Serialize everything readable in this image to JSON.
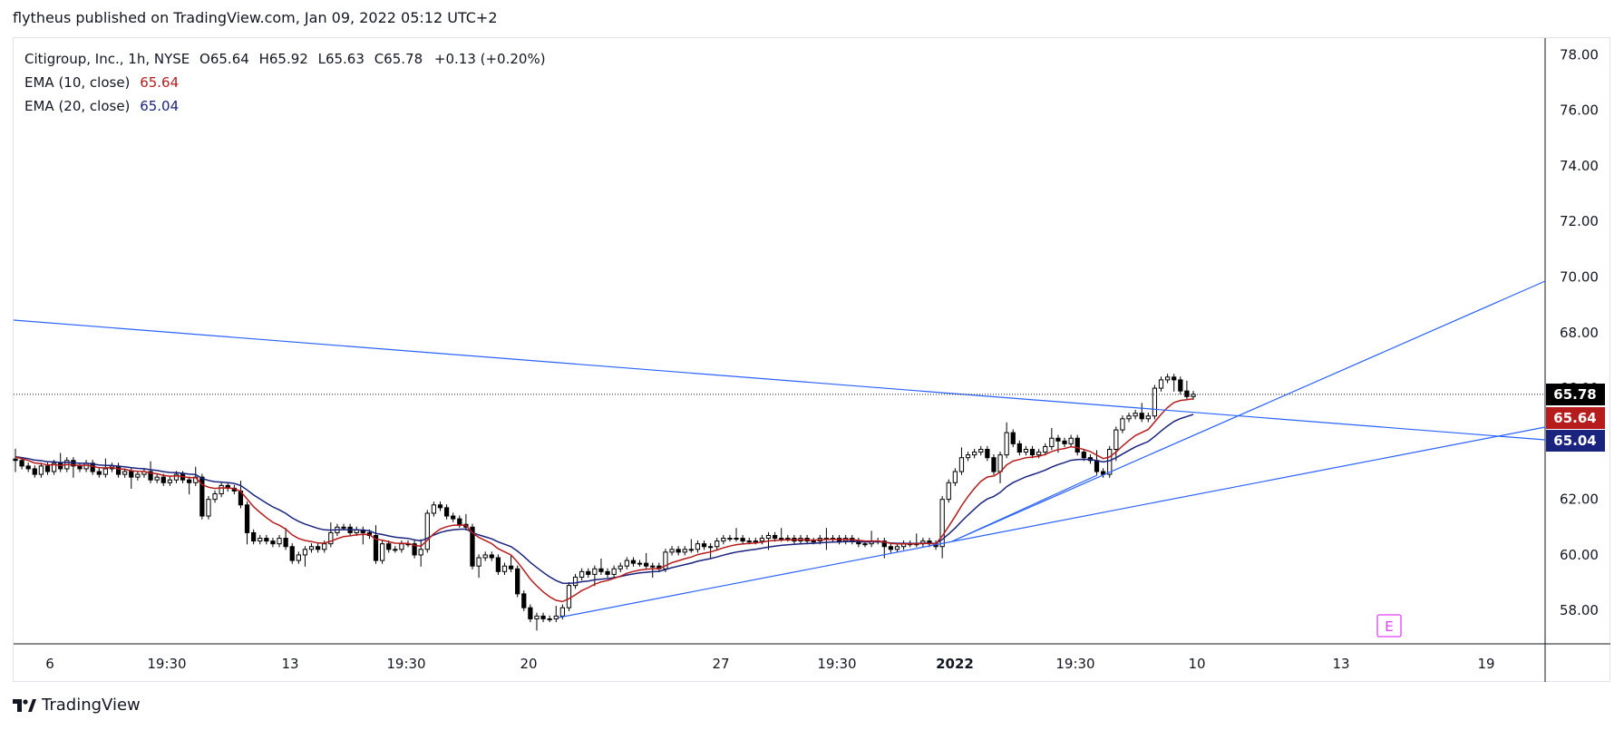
{
  "header": {
    "published_by": "flytheus published on TradingView.com, Jan 09, 2022 05:12 UTC+2"
  },
  "legend": {
    "symbol": "Citigroup, Inc., 1h, NYSE",
    "o_label": "O",
    "o_value": "65.64",
    "h_label": "H",
    "h_value": "65.92",
    "l_label": "L",
    "l_value": "65.63",
    "c_label": "C",
    "c_value": "65.78",
    "change": "+0.13 (+0.20%)",
    "ema10_label": "EMA (10, close)",
    "ema10_value": "65.64",
    "ema20_label": "EMA (20, close)",
    "ema20_value": "65.04"
  },
  "footer": {
    "brand": "TradingView"
  },
  "earnings_marker": "E",
  "colors": {
    "ema10": "#b71c1c",
    "ema20": "#1a237e",
    "trendline": "#2962ff",
    "last_price_badge": "#000000",
    "earnings": "#e040fb",
    "grid_border": "#e0e3eb"
  },
  "chart_data": {
    "type": "candlestick",
    "y_axis": {
      "range": [
        56.8,
        78.6
      ],
      "ticks": [
        "58.00",
        "60.00",
        "62.00",
        "64.00",
        "66.00",
        "68.00",
        "70.00",
        "72.00",
        "74.00",
        "76.00",
        "78.00"
      ]
    },
    "x_axis": {
      "ticks": [
        {
          "label": "6",
          "t": 0.04
        },
        {
          "label": "19:30",
          "t": 0.145
        },
        {
          "label": "13",
          "t": 0.248
        },
        {
          "label": "19:30",
          "t": 0.354
        },
        {
          "label": "20",
          "t": 0.467
        },
        {
          "label": "27",
          "t": 0.6
        },
        {
          "label": "19:30",
          "t": 0.7
        },
        {
          "label": "2022",
          "t": 0.8
        },
        {
          "label": "19:30",
          "t": 0.886
        },
        {
          "label": "10",
          "t": 0.938
        },
        {
          "label": "13",
          "t": 1.0
        },
        {
          "label": "19",
          "t": 1.0
        }
      ]
    },
    "price_badges": [
      {
        "value": "65.78",
        "price": 65.78,
        "color": "#000000"
      },
      {
        "value": "65.64",
        "price": 65.64,
        "color": "#b71c1c"
      },
      {
        "value": "65.04",
        "price": 65.04,
        "color": "#1a237e"
      }
    ],
    "last_price": 65.78,
    "closes": [
      63.4,
      63.2,
      63.1,
      62.9,
      63.2,
      63.0,
      63.3,
      63.1,
      63.4,
      63.2,
      63.1,
      63.3,
      63.0,
      62.9,
      63.1,
      63.2,
      62.9,
      63.0,
      62.8,
      62.9,
      63.0,
      62.7,
      62.8,
      62.6,
      62.7,
      62.9,
      62.7,
      62.6,
      62.8,
      61.4,
      62.0,
      62.2,
      62.5,
      62.4,
      62.3,
      61.8,
      60.8,
      60.5,
      60.6,
      60.5,
      60.4,
      60.6,
      60.3,
      59.8,
      60.0,
      60.2,
      60.3,
      60.2,
      60.4,
      60.8,
      61.0,
      61.0,
      60.8,
      60.9,
      60.8,
      60.7,
      59.8,
      60.4,
      60.2,
      60.2,
      60.4,
      60.4,
      60.0,
      60.2,
      61.5,
      61.8,
      61.7,
      61.4,
      61.3,
      61.1,
      61.0,
      59.6,
      59.9,
      60.0,
      59.9,
      59.4,
      59.6,
      59.5,
      58.6,
      58.1,
      57.7,
      57.8,
      57.7,
      57.7,
      57.8,
      58.1,
      58.9,
      59.2,
      59.4,
      59.3,
      59.5,
      59.4,
      59.3,
      59.5,
      59.6,
      59.8,
      59.7,
      59.7,
      59.6,
      59.6,
      59.5,
      60.1,
      60.2,
      60.1,
      60.2,
      60.2,
      60.4,
      60.3,
      60.3,
      60.5,
      60.6,
      60.6,
      60.6,
      60.5,
      60.5,
      60.5,
      60.6,
      60.7,
      60.6,
      60.6,
      60.6,
      60.5,
      60.6,
      60.5,
      60.5,
      60.6,
      60.6,
      60.6,
      60.5,
      60.6,
      60.5,
      60.4,
      60.4,
      60.5,
      60.5,
      60.3,
      60.2,
      60.3,
      60.4,
      60.4,
      60.4,
      60.5,
      60.4,
      60.3,
      62.0,
      62.6,
      63.0,
      63.5,
      63.6,
      63.7,
      63.8,
      63.5,
      63.0,
      63.6,
      64.4,
      64.0,
      63.7,
      63.8,
      63.6,
      63.7,
      63.9,
      64.2,
      64.1,
      64.0,
      64.2,
      63.7,
      63.5,
      63.4,
      63.0,
      62.9,
      63.8,
      64.5,
      64.9,
      65.0,
      65.1,
      64.9,
      65.0,
      66.0,
      66.3,
      66.4,
      66.3,
      65.9,
      65.7,
      65.78
    ]
  }
}
